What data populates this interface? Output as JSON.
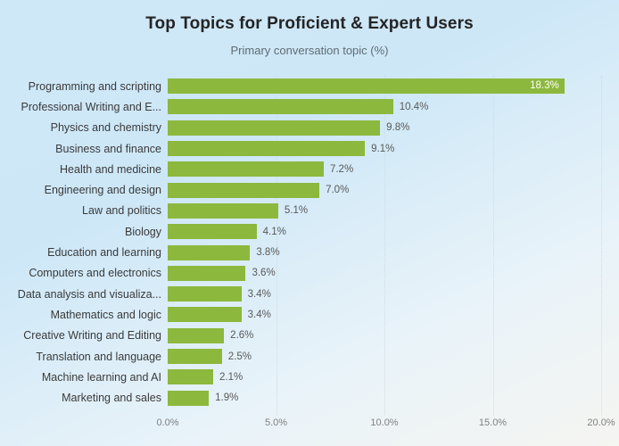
{
  "header": {
    "title": "Top Topics for Proficient & Expert Users",
    "subtitle": "Primary conversation topic (%)"
  },
  "chart_data": {
    "type": "bar",
    "orientation": "horizontal",
    "title": "Top Topics for Proficient & Expert Users",
    "subtitle": "Primary conversation topic (%)",
    "categories": [
      "Programming and scripting",
      "Professional Writing and E...",
      "Physics and chemistry",
      "Business and finance",
      "Health and medicine",
      "Engineering and design",
      "Law and politics",
      "Biology",
      "Education and learning",
      "Computers and electronics",
      "Data analysis and visualiza...",
      "Mathematics and logic",
      "Creative Writing and Editing",
      "Translation and language",
      "Machine learning and AI",
      "Marketing and sales"
    ],
    "values": [
      18.3,
      10.4,
      9.8,
      9.1,
      7.2,
      7.0,
      5.1,
      4.1,
      3.8,
      3.6,
      3.4,
      3.4,
      2.6,
      2.5,
      2.1,
      1.9
    ],
    "value_labels": [
      "18.3%",
      "10.4%",
      "9.8%",
      "9.1%",
      "7.2%",
      "7.0%",
      "5.1%",
      "4.1%",
      "3.8%",
      "3.6%",
      "3.4%",
      "3.4%",
      "2.6%",
      "2.5%",
      "2.1%",
      "1.9%"
    ],
    "xlim": [
      0,
      20
    ],
    "x_ticks": [
      0,
      5,
      10,
      15,
      20
    ],
    "x_tick_labels": [
      "0.0%",
      "5.0%",
      "10.0%",
      "15.0%",
      "20.0%"
    ],
    "grid": "vertical-dotted",
    "legend": "none",
    "inside_label_threshold": 16
  },
  "colors": {
    "background_top": "#cfe8f8",
    "background_mid": "#cde7f7",
    "background_low": "#e9f3f9",
    "background_bottom": "#f5f5f1",
    "bar": "#8cb83d",
    "value_label_inside": "#ffffff",
    "value_label_outside": "#595959",
    "category_label": "#3a3a3a",
    "axis_label": "#808080",
    "gridline": "#ccdade",
    "title": "#242424",
    "subtitle": "#5f6b73"
  }
}
